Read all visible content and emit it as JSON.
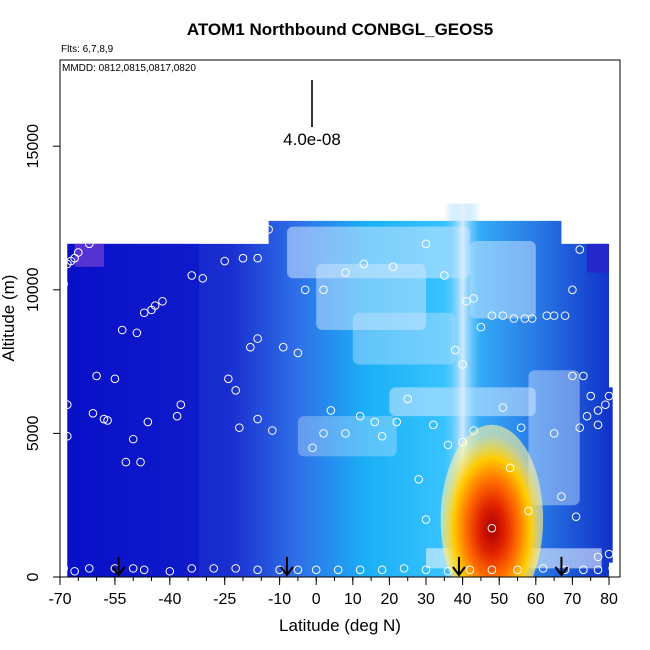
{
  "chart_data": {
    "type": "heatmap",
    "title": "ATOM1 Northbound CONBGL_GEOS5",
    "flights_note": "Flts: 6,7,8,9",
    "dates_note": "MMDD: 0812,0815,0817,0820",
    "xlabel": "Latitude (deg N)",
    "ylabel": "Altitude (m)",
    "xlim": [
      -70,
      83
    ],
    "ylim": [
      0,
      18000
    ],
    "x_ticks": [
      -70,
      -55,
      -40,
      -25,
      -10,
      0,
      10,
      20,
      30,
      40,
      50,
      60,
      70,
      80
    ],
    "y_ticks": [
      0,
      5000,
      10000,
      15000
    ],
    "scale_bar_label": "4.0e-08",
    "colors": {
      "low": "#0a10c8",
      "mid": "#1ab0f5",
      "light": "#cfe7ff",
      "high": "#ffe000",
      "peak": "#b00000",
      "top_violet": "#6a3bd6"
    },
    "flight_arrows_lat": [
      -54,
      -8,
      39,
      67
    ],
    "obs_points": [
      [
        -69,
        10200
      ],
      [
        -68,
        10900
      ],
      [
        -67,
        11000
      ],
      [
        -66,
        11100
      ],
      [
        -65,
        11300
      ],
      [
        -62,
        11600
      ],
      [
        -68,
        6000
      ],
      [
        -68,
        4900
      ],
      [
        -61,
        5700
      ],
      [
        -58,
        5500
      ],
      [
        -57,
        5450
      ],
      [
        -60,
        7000
      ],
      [
        -53,
        8600
      ],
      [
        -49,
        8500
      ],
      [
        -47,
        9200
      ],
      [
        -45,
        9300
      ],
      [
        -44,
        9450
      ],
      [
        -42,
        9600
      ],
      [
        -55,
        6900
      ],
      [
        -50,
        4800
      ],
      [
        -52,
        4000
      ],
      [
        -48,
        4000
      ],
      [
        -46,
        5400
      ],
      [
        -38,
        5600
      ],
      [
        -37,
        6000
      ],
      [
        -34,
        10500
      ],
      [
        -31,
        10400
      ],
      [
        -25,
        11000
      ],
      [
        -20,
        11100
      ],
      [
        -16,
        11100
      ],
      [
        -13,
        12100
      ],
      [
        -22,
        6500
      ],
      [
        -24,
        6900
      ],
      [
        -21,
        5200
      ],
      [
        -16,
        5500
      ],
      [
        -12,
        5100
      ],
      [
        -18,
        8000
      ],
      [
        -16,
        8300
      ],
      [
        -9,
        8000
      ],
      [
        -5,
        7800
      ],
      [
        -3,
        10000
      ],
      [
        2,
        10000
      ],
      [
        8,
        10600
      ],
      [
        13,
        10900
      ],
      [
        21,
        10800
      ],
      [
        30,
        11600
      ],
      [
        35,
        10500
      ],
      [
        38,
        7900
      ],
      [
        40,
        7400
      ],
      [
        43,
        9700
      ],
      [
        41,
        9600
      ],
      [
        45,
        8700
      ],
      [
        48,
        9100
      ],
      [
        51,
        9100
      ],
      [
        54,
        9000
      ],
      [
        57,
        9000
      ],
      [
        59,
        9000
      ],
      [
        63,
        9100
      ],
      [
        65,
        9100
      ],
      [
        68,
        9100
      ],
      [
        70,
        10000
      ],
      [
        72,
        11400
      ],
      [
        76,
        11800
      ],
      [
        73,
        7000
      ],
      [
        70,
        7000
      ],
      [
        75,
        6300
      ],
      [
        77,
        5800
      ],
      [
        80,
        6300
      ],
      [
        79,
        6000
      ],
      [
        77,
        5300
      ],
      [
        74,
        5600
      ],
      [
        72,
        5200
      ],
      [
        65,
        5000
      ],
      [
        56,
        5200
      ],
      [
        51,
        5900
      ],
      [
        43,
        5100
      ],
      [
        40,
        4700
      ],
      [
        36,
        4600
      ],
      [
        32,
        5300
      ],
      [
        25,
        6200
      ],
      [
        22,
        5400
      ],
      [
        18,
        4900
      ],
      [
        16,
        5400
      ],
      [
        12,
        5600
      ],
      [
        8,
        5000
      ],
      [
        4,
        5800
      ],
      [
        2,
        5000
      ],
      [
        -1,
        4500
      ],
      [
        30,
        2000
      ],
      [
        28,
        3400
      ],
      [
        48,
        1700
      ],
      [
        53,
        3800
      ],
      [
        58,
        2300
      ],
      [
        67,
        2800
      ],
      [
        71,
        2100
      ],
      [
        77,
        700
      ],
      [
        80,
        800
      ],
      [
        -69,
        300
      ],
      [
        -66,
        200
      ],
      [
        -62,
        300
      ],
      [
        -55,
        300
      ],
      [
        -50,
        300
      ],
      [
        -47,
        250
      ],
      [
        -40,
        200
      ],
      [
        -34,
        300
      ],
      [
        -28,
        300
      ],
      [
        -22,
        300
      ],
      [
        -16,
        250
      ],
      [
        -10,
        250
      ],
      [
        -5,
        250
      ],
      [
        0,
        250
      ],
      [
        6,
        250
      ],
      [
        12,
        250
      ],
      [
        18,
        250
      ],
      [
        24,
        300
      ],
      [
        30,
        250
      ],
      [
        36,
        200
      ],
      [
        42,
        250
      ],
      [
        48,
        250
      ],
      [
        55,
        250
      ],
      [
        62,
        300
      ],
      [
        68,
        250
      ],
      [
        73,
        250
      ],
      [
        77,
        250
      ],
      [
        81,
        300
      ]
    ]
  }
}
